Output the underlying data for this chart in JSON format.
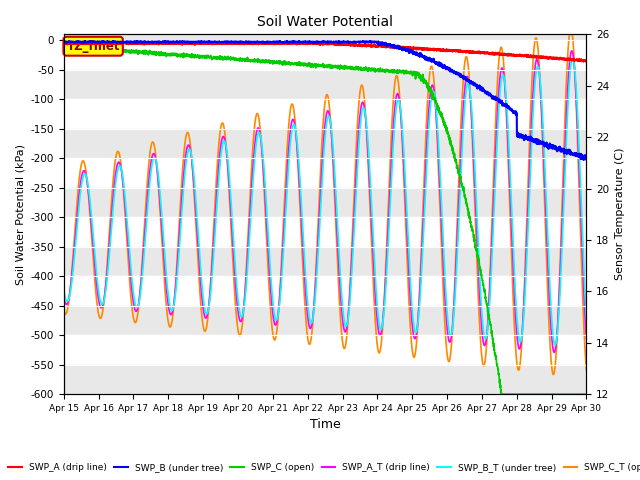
{
  "title": "Soil Water Potential",
  "xlabel": "Time",
  "ylabel_left": "Soil Water Potential (kPa)",
  "ylabel_right": "Sensor Temperature (C)",
  "ylim_left": [
    -600,
    10
  ],
  "ylim_right": [
    12,
    26
  ],
  "xlim": [
    0,
    15
  ],
  "x_tick_labels": [
    "Apr 15",
    "Apr 16",
    "Apr 17",
    "Apr 18",
    "Apr 19",
    "Apr 20",
    "Apr 21",
    "Apr 22",
    "Apr 23",
    "Apr 24",
    "Apr 25",
    "Apr 26",
    "Apr 27",
    "Apr 28",
    "Apr 29",
    "Apr 30"
  ],
  "ytick_vals": [
    0,
    -50,
    -100,
    -150,
    -200,
    -250,
    -300,
    -350,
    -400,
    -450,
    -500,
    -550,
    -600
  ],
  "right_ticks": [
    12,
    14,
    16,
    18,
    20,
    22,
    24,
    26
  ],
  "annotation_text": "TZ_fmet",
  "annotation_bg": "#ffff00",
  "annotation_border": "#cc0000",
  "swp_a_color": "#ff0000",
  "swp_b_color": "#0000ff",
  "swp_c_color": "#00cc00",
  "swp_at_color": "#ff00ff",
  "swp_bt_color": "#00ffff",
  "swp_ct_color": "#ff8800",
  "band_color": "#e8e8e8",
  "band_light": "#f5f5f5"
}
